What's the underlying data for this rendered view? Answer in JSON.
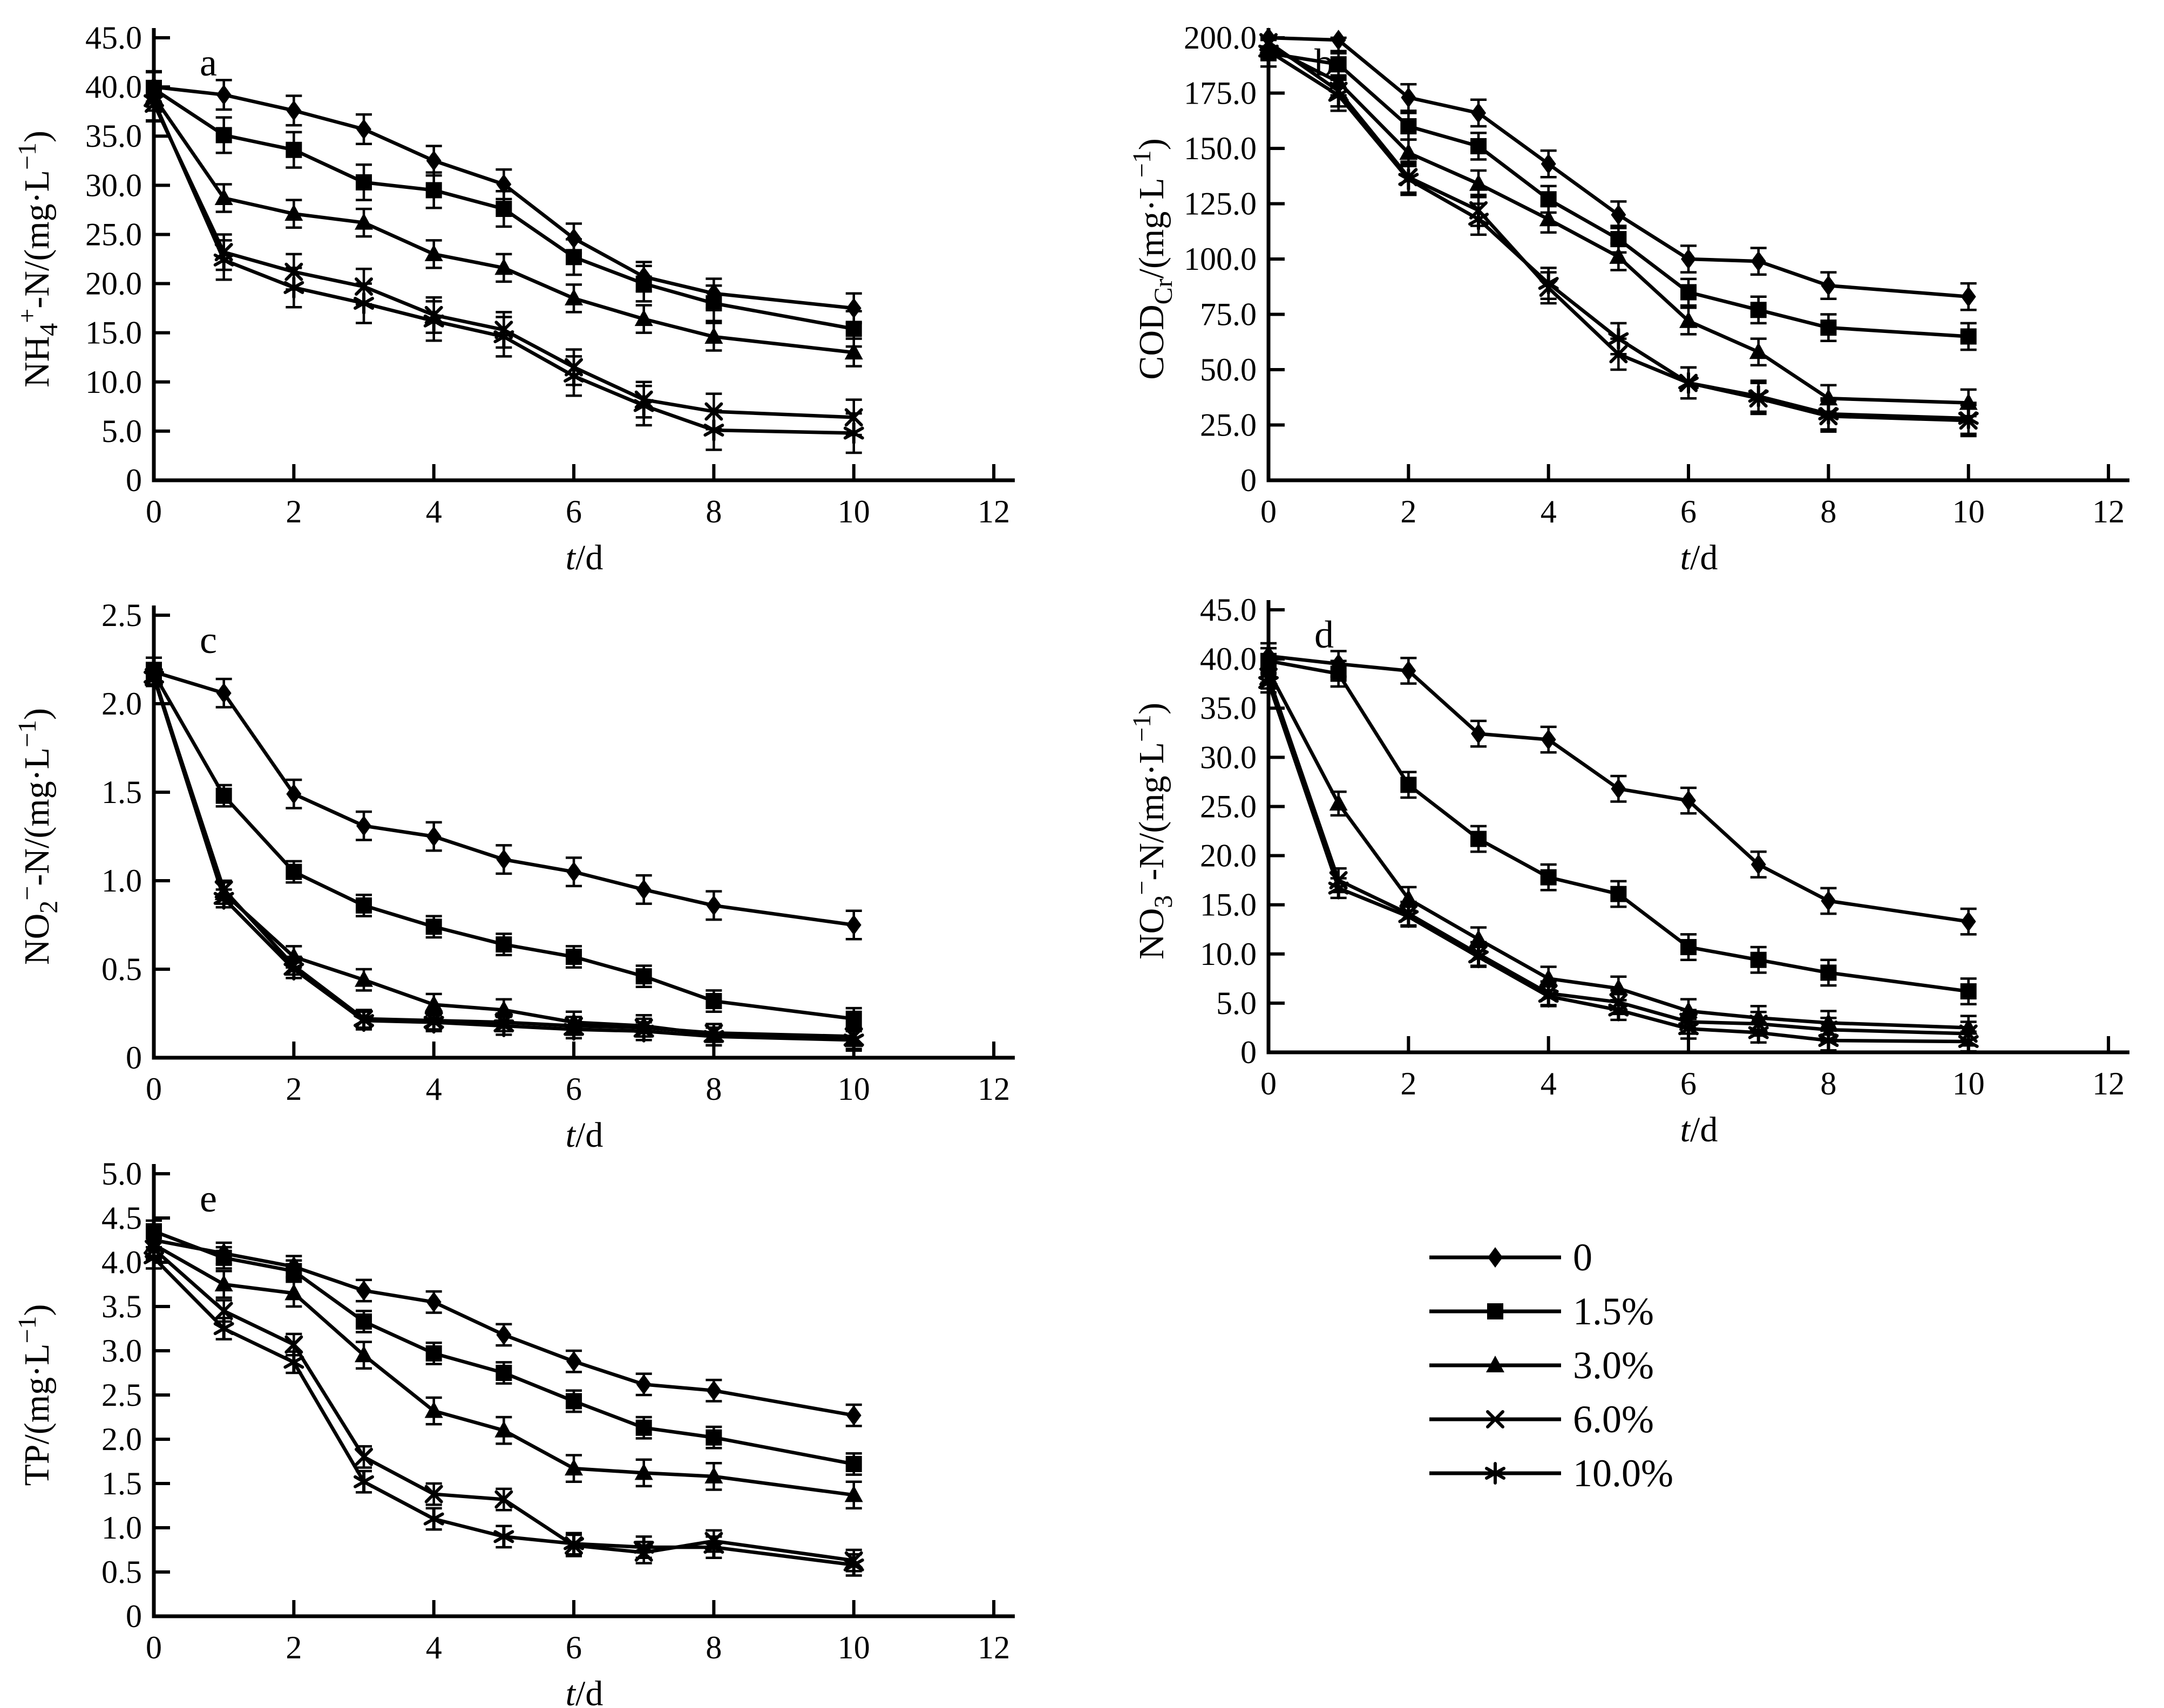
{
  "figure": {
    "background": "#ffffff",
    "ink": "#000000",
    "xlabel_parts": [
      {
        "t": "t",
        "italic": true
      },
      {
        "t": "/d"
      }
    ],
    "x_tick_labels": [
      "0",
      "2",
      "4",
      "6",
      "8",
      "10",
      "12"
    ],
    "x_tick_values": [
      0,
      2,
      4,
      6,
      8,
      10,
      12
    ],
    "x_axis_max": 12.3,
    "legend": {
      "position": "bottom-right",
      "items": [
        {
          "label": "0",
          "marker": "diamond"
        },
        {
          "label": "1.5%",
          "marker": "square"
        },
        {
          "label": "3.0%",
          "marker": "triangle"
        },
        {
          "label": "6.0%",
          "marker": "x"
        },
        {
          "label": "10.0%",
          "marker": "asterisk"
        }
      ]
    }
  },
  "chart_data": [
    {
      "id": "a",
      "type": "line",
      "panel_label": "a",
      "ylabel_parts": [
        {
          "t": "NH"
        },
        {
          "t": "4",
          "sub": true
        },
        {
          "t": "+",
          "sup": true
        },
        {
          "t": "-N/(mg·L"
        },
        {
          "t": "−1",
          "sup": true
        },
        {
          "t": ")"
        }
      ],
      "xlabel": "t/d",
      "grid": false,
      "ylim": [
        0,
        45
      ],
      "ytick_values": [
        0,
        5,
        10,
        15,
        20,
        25,
        30,
        35,
        40,
        45
      ],
      "ytick_labels": [
        "0",
        "5.0",
        "10.0",
        "15.0",
        "20.0",
        "25.0",
        "30.0",
        "35.0",
        "40.0",
        "45.0"
      ],
      "x": [
        0,
        1,
        2,
        3,
        4,
        5,
        6,
        7,
        8,
        10
      ],
      "series": [
        {
          "name": "0",
          "marker": "diamond",
          "err": 1.5,
          "values": [
            40.0,
            39.2,
            37.6,
            35.7,
            32.5,
            30.1,
            24.6,
            20.7,
            19.0,
            17.5
          ]
        },
        {
          "name": "1.5%",
          "marker": "square",
          "err": 1.8,
          "values": [
            39.8,
            35.1,
            33.6,
            30.3,
            29.5,
            27.6,
            22.7,
            20.0,
            18.0,
            15.4
          ]
        },
        {
          "name": "3.0%",
          "marker": "triangle",
          "err": 1.4,
          "values": [
            39.0,
            28.7,
            27.1,
            26.2,
            23.0,
            21.6,
            18.5,
            16.4,
            14.6,
            13.0
          ]
        },
        {
          "name": "6.0%",
          "marker": "x",
          "err": 1.8,
          "values": [
            38.3,
            23.2,
            21.2,
            19.7,
            16.8,
            15.3,
            11.5,
            8.2,
            7.0,
            6.4
          ]
        },
        {
          "name": "10.0%",
          "marker": "asterisk",
          "err": 2.0,
          "values": [
            38.6,
            22.4,
            19.6,
            18.0,
            16.2,
            14.6,
            10.6,
            7.6,
            5.1,
            4.8
          ]
        }
      ]
    },
    {
      "id": "b",
      "type": "line",
      "panel_label": "b",
      "ylabel_parts": [
        {
          "t": "COD"
        },
        {
          "t": "Cr",
          "sub": true
        },
        {
          "t": "/(mg·L"
        },
        {
          "t": "−1",
          "sup": true
        },
        {
          "t": ")"
        }
      ],
      "xlabel": "t/d",
      "grid": false,
      "ylim": [
        0,
        200
      ],
      "ytick_values": [
        0,
        25,
        50,
        75,
        100,
        125,
        150,
        175,
        200
      ],
      "ytick_labels": [
        "0",
        "25.0",
        "50.0",
        "75.0",
        "100.0",
        "125.0",
        "150.0",
        "175.0",
        "200.0"
      ],
      "x": [
        0,
        1,
        2,
        3,
        4,
        5,
        6,
        7,
        8,
        10
      ],
      "series": [
        {
          "name": "0",
          "marker": "diamond",
          "err": 6,
          "values": [
            200,
            199,
            173,
            166,
            143,
            120,
            100,
            99,
            88,
            83
          ]
        },
        {
          "name": "1.5%",
          "marker": "square",
          "err": 6,
          "values": [
            193,
            188,
            160,
            151,
            127,
            109,
            85,
            77,
            69,
            65
          ]
        },
        {
          "name": "3.0%",
          "marker": "triangle",
          "err": 6,
          "values": [
            196,
            180,
            148,
            134,
            118,
            101,
            72,
            58,
            37,
            35
          ]
        },
        {
          "name": "6.0%",
          "marker": "x",
          "err": 7,
          "values": [
            198,
            176,
            137,
            122,
            87,
            57,
            44,
            37,
            29,
            27
          ]
        },
        {
          "name": "10.0%",
          "marker": "asterisk",
          "err": 7,
          "values": [
            194,
            174,
            136,
            118,
            89,
            64,
            44,
            38,
            30,
            28
          ]
        }
      ]
    },
    {
      "id": "c",
      "type": "line",
      "panel_label": "c",
      "ylabel_parts": [
        {
          "t": "NO"
        },
        {
          "t": "2",
          "sub": true
        },
        {
          "t": "−",
          "sup": true
        },
        {
          "t": "-N/(mg·L"
        },
        {
          "t": "−1",
          "sup": true
        },
        {
          "t": ")"
        }
      ],
      "xlabel": "t/d",
      "grid": false,
      "ylim": [
        0,
        2.5
      ],
      "ytick_values": [
        0,
        0.5,
        1.0,
        1.5,
        2.0,
        2.5
      ],
      "ytick_labels": [
        "0",
        "0.5",
        "1.0",
        "1.5",
        "2.0",
        "2.5"
      ],
      "x": [
        0,
        1,
        2,
        3,
        4,
        5,
        6,
        7,
        8,
        10
      ],
      "series": [
        {
          "name": "0",
          "marker": "diamond",
          "err": 0.08,
          "values": [
            2.18,
            2.06,
            1.49,
            1.31,
            1.25,
            1.12,
            1.05,
            0.95,
            0.86,
            0.75
          ]
        },
        {
          "name": "1.5%",
          "marker": "square",
          "err": 0.06,
          "values": [
            2.17,
            1.48,
            1.05,
            0.86,
            0.74,
            0.64,
            0.57,
            0.46,
            0.32,
            0.22
          ]
        },
        {
          "name": "3.0%",
          "marker": "triangle",
          "err": 0.06,
          "values": [
            2.16,
            0.93,
            0.57,
            0.44,
            0.3,
            0.27,
            0.2,
            0.18,
            0.13,
            0.1
          ]
        },
        {
          "name": "6.0%",
          "marker": "x",
          "err": 0.05,
          "values": [
            2.15,
            0.95,
            0.52,
            0.22,
            0.21,
            0.2,
            0.18,
            0.17,
            0.14,
            0.12
          ]
        },
        {
          "name": "10.0%",
          "marker": "asterisk",
          "err": 0.05,
          "values": [
            2.15,
            0.9,
            0.5,
            0.21,
            0.2,
            0.18,
            0.16,
            0.15,
            0.12,
            0.1
          ]
        }
      ]
    },
    {
      "id": "d",
      "type": "line",
      "panel_label": "d",
      "ylabel_parts": [
        {
          "t": "NO"
        },
        {
          "t": "3",
          "sub": true
        },
        {
          "t": "−",
          "sup": true
        },
        {
          "t": "-N/(mg·L"
        },
        {
          "t": "−1",
          "sup": true
        },
        {
          "t": ")"
        }
      ],
      "xlabel": "t/d",
      "grid": false,
      "ylim": [
        0,
        45
      ],
      "ytick_values": [
        0,
        5,
        10,
        15,
        20,
        25,
        30,
        35,
        40,
        45
      ],
      "ytick_labels": [
        "0",
        "5.0",
        "10.0",
        "15.0",
        "20.0",
        "25.0",
        "30.0",
        "35.0",
        "40.0",
        "45.0"
      ],
      "x": [
        0,
        1,
        2,
        3,
        4,
        5,
        6,
        7,
        8,
        10
      ],
      "series": [
        {
          "name": "0",
          "marker": "diamond",
          "err": 1.3,
          "values": [
            40.3,
            39.5,
            38.8,
            32.4,
            31.8,
            26.8,
            25.6,
            19.1,
            15.4,
            13.3
          ]
        },
        {
          "name": "1.5%",
          "marker": "square",
          "err": 1.3,
          "values": [
            39.8,
            38.5,
            27.2,
            21.7,
            17.8,
            16.1,
            10.7,
            9.4,
            8.1,
            6.2
          ]
        },
        {
          "name": "3.0%",
          "marker": "triangle",
          "err": 1.2,
          "values": [
            38.8,
            25.3,
            15.6,
            11.5,
            7.5,
            6.5,
            4.2,
            3.5,
            3.0,
            2.5
          ]
        },
        {
          "name": "6.0%",
          "marker": "x",
          "err": 1.2,
          "values": [
            38.2,
            17.5,
            14.1,
            10.0,
            6.0,
            5.1,
            3.1,
            2.9,
            2.3,
            1.9
          ]
        },
        {
          "name": "10.0%",
          "marker": "asterisk",
          "err": 1.0,
          "values": [
            37.6,
            16.7,
            13.8,
            9.7,
            5.7,
            4.3,
            2.4,
            2.0,
            1.2,
            1.1
          ]
        }
      ]
    },
    {
      "id": "e",
      "type": "line",
      "panel_label": "e",
      "ylabel_parts": [
        {
          "t": "TP/(mg·L"
        },
        {
          "t": "−1",
          "sup": true
        },
        {
          "t": ")"
        }
      ],
      "xlabel": "t/d",
      "grid": false,
      "ylim": [
        0,
        5
      ],
      "ytick_values": [
        0,
        0.5,
        1.0,
        1.5,
        2.0,
        2.5,
        3.0,
        3.5,
        4.0,
        4.5,
        5.0
      ],
      "ytick_labels": [
        "0",
        "0.5",
        "1.0",
        "1.5",
        "2.0",
        "2.5",
        "3.0",
        "3.5",
        "4.0",
        "4.5",
        "5.0"
      ],
      "x": [
        0,
        1,
        2,
        3,
        4,
        5,
        6,
        7,
        8,
        10
      ],
      "series": [
        {
          "name": "0",
          "marker": "diamond",
          "err": 0.12,
          "values": [
            4.25,
            4.1,
            3.95,
            3.68,
            3.55,
            3.18,
            2.88,
            2.62,
            2.55,
            2.27
          ]
        },
        {
          "name": "1.5%",
          "marker": "square",
          "err": 0.12,
          "values": [
            4.35,
            4.05,
            3.9,
            3.33,
            2.97,
            2.75,
            2.43,
            2.13,
            2.02,
            1.72
          ]
        },
        {
          "name": "3.0%",
          "marker": "triangle",
          "err": 0.15,
          "values": [
            4.2,
            3.75,
            3.65,
            2.95,
            2.32,
            2.1,
            1.67,
            1.62,
            1.58,
            1.37
          ]
        },
        {
          "name": "6.0%",
          "marker": "x",
          "err": 0.12,
          "values": [
            4.15,
            3.45,
            3.07,
            1.8,
            1.38,
            1.32,
            0.8,
            0.72,
            0.85,
            0.63
          ]
        },
        {
          "name": "10.0%",
          "marker": "asterisk",
          "err": 0.12,
          "values": [
            4.05,
            3.25,
            2.87,
            1.52,
            1.1,
            0.9,
            0.82,
            0.78,
            0.78,
            0.58
          ]
        }
      ]
    }
  ]
}
